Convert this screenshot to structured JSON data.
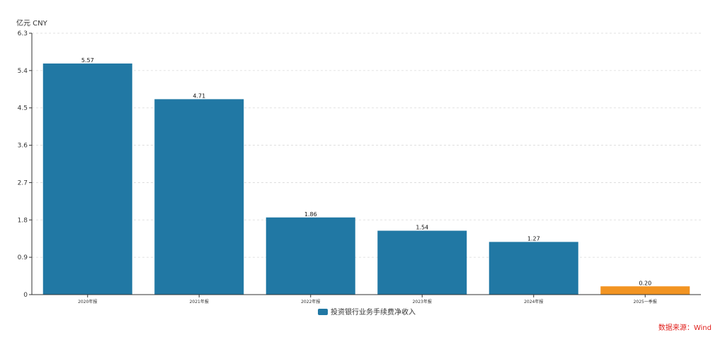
{
  "chart_data": {
    "type": "bar",
    "y_unit_label": "亿元  CNY",
    "categories": [
      "2020年报",
      "2021年报",
      "2022年报",
      "2023年报",
      "2024年报",
      "2025一季报"
    ],
    "series": [
      {
        "name": "投资银行业务手续费净收入",
        "values": [
          5.57,
          4.71,
          1.86,
          1.54,
          1.27,
          0.2
        ],
        "data_labels": [
          "5.57",
          "4.71",
          "1.86",
          "1.54",
          "1.27",
          "0.20"
        ],
        "color": "#2178a4",
        "highlight_color": "#f29422",
        "highlight_index": 5
      }
    ],
    "yticks": [
      "0",
      "0.9",
      "1.8",
      "2.7",
      "3.6",
      "4.5",
      "5.4",
      "6.3"
    ],
    "ylim": [
      0,
      6.3
    ],
    "grid": true,
    "legend_position": "bottom-center"
  },
  "source_text": "数据来源：Wind"
}
